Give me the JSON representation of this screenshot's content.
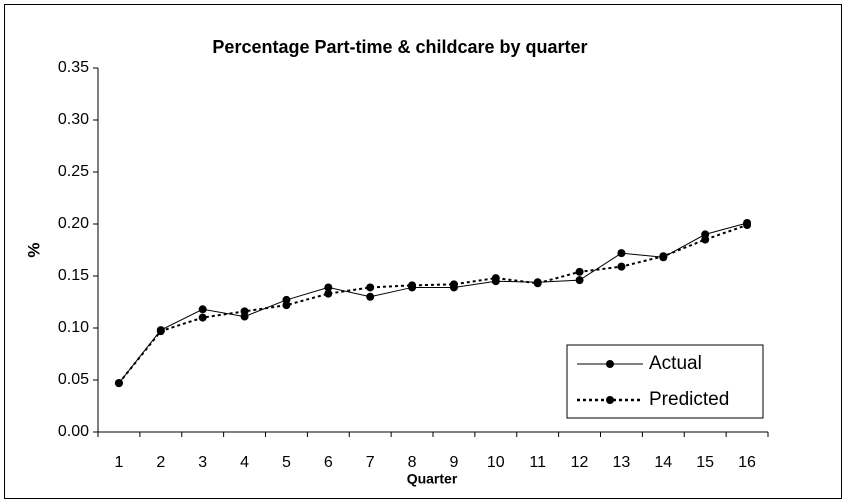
{
  "chart_data": {
    "type": "line",
    "title": "Percentage Part-time & childcare by quarter",
    "x_label": "Quarter",
    "y_label": "%",
    "categories": [
      "1",
      "2",
      "3",
      "4",
      "5",
      "6",
      "7",
      "8",
      "9",
      "10",
      "11",
      "12",
      "13",
      "14",
      "15",
      "16"
    ],
    "series": [
      {
        "name": "Actual",
        "color": "#000000",
        "line_style": "solid",
        "values": [
          0.047,
          0.098,
          0.118,
          0.111,
          0.127,
          0.139,
          0.13,
          0.139,
          0.139,
          0.145,
          0.144,
          0.146,
          0.172,
          0.168,
          0.19,
          0.201
        ]
      },
      {
        "name": "Predicted",
        "color": "#000000",
        "line_style": "dotted",
        "values": [
          0.047,
          0.097,
          0.11,
          0.116,
          0.122,
          0.133,
          0.139,
          0.141,
          0.142,
          0.148,
          0.143,
          0.154,
          0.159,
          0.169,
          0.185,
          0.199
        ]
      }
    ],
    "ylim": [
      0,
      0.35
    ],
    "yticks": [
      {
        "value": 0,
        "label": "0.00"
      },
      {
        "value": 0.05,
        "label": "0.05"
      },
      {
        "value": 0.1,
        "label": "0.10"
      },
      {
        "value": 0.15,
        "label": "0.15"
      },
      {
        "value": 0.2,
        "label": "0.20"
      },
      {
        "value": 0.25,
        "label": "0.25"
      },
      {
        "value": 0.3,
        "label": "0.30"
      },
      {
        "value": 0.35,
        "label": "0.35"
      }
    ],
    "grid": false,
    "legend": "lower right"
  }
}
